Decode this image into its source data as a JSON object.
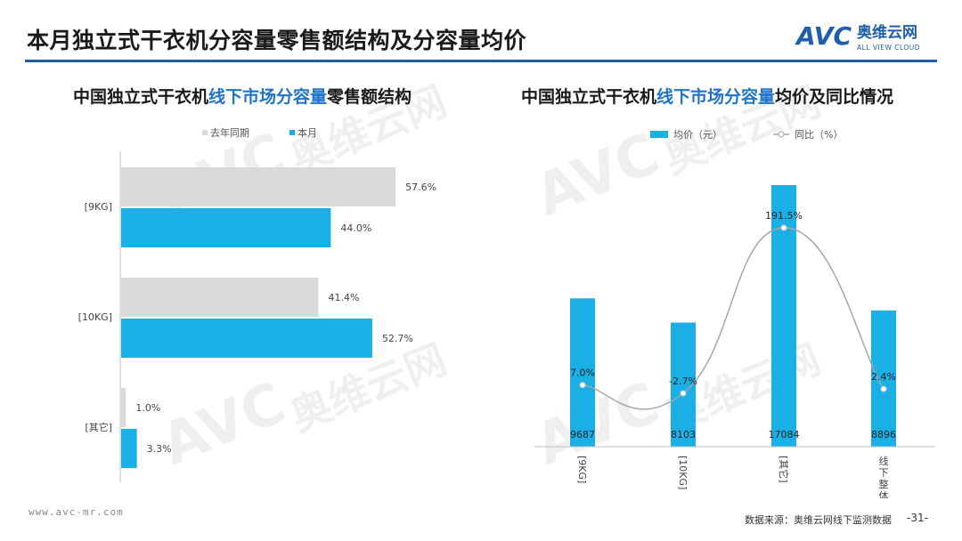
{
  "page": {
    "title": "本月独立式干衣机分容量零售额结构及分容量均价",
    "logo_text_cn": "奥维云网",
    "logo_text_en": "ALL VIEW CLOUD",
    "logo_mark": "AVC",
    "footer_url": "www.avc-mr.com",
    "footer_source": "数据来源：奥维云网线下监测数据",
    "page_number": "-31-",
    "brand_color": "#1f5faa",
    "accent_color": "#1ab0e6"
  },
  "left_chart": {
    "title_part1": "中国独立式干衣机",
    "title_highlight": "线下市场分容量",
    "title_part2": "零售额结构"
  },
  "right_chart": {
    "title_part1": "中国独立式干衣机",
    "title_highlight": "线下市场分容量",
    "title_part2": "均价及同比情况"
  },
  "chart_data": [
    {
      "type": "bar",
      "orientation": "horizontal",
      "categories": [
        "[9KG]",
        "[10KG]",
        "[其它]"
      ],
      "series": [
        {
          "name": "去年同期",
          "values": [
            57.6,
            41.4,
            1.0
          ],
          "labels": [
            "57.6%",
            "41.4%",
            "1.0%"
          ],
          "color": "#d9d9d9"
        },
        {
          "name": "本月",
          "values": [
            44.0,
            52.7,
            3.3
          ],
          "labels": [
            "44.0%",
            "52.7%",
            "3.3%"
          ],
          "color": "#1ab0e6"
        }
      ],
      "unit": "%",
      "xlim": [
        0,
        100
      ],
      "legend": "top",
      "grid": false
    },
    {
      "type": "bar",
      "categories": [
        "[9KG]",
        "[10KG]",
        "[其它]",
        "线下整体"
      ],
      "series": [
        {
          "name": "均价（元）",
          "type": "bar",
          "values": [
            9687,
            8103,
            17084,
            8896
          ],
          "labels": [
            "9687",
            "8103",
            "17084",
            "8896"
          ],
          "color": "#1ab0e6"
        },
        {
          "name": "同比（%）",
          "type": "line",
          "values": [
            7.0,
            -2.7,
            191.5,
            2.4
          ],
          "labels": [
            "7.0%",
            "-2.7%",
            "191.5%",
            "2.4%"
          ],
          "color": "#a6a6a6"
        }
      ],
      "legend": "top",
      "grid": false
    }
  ]
}
